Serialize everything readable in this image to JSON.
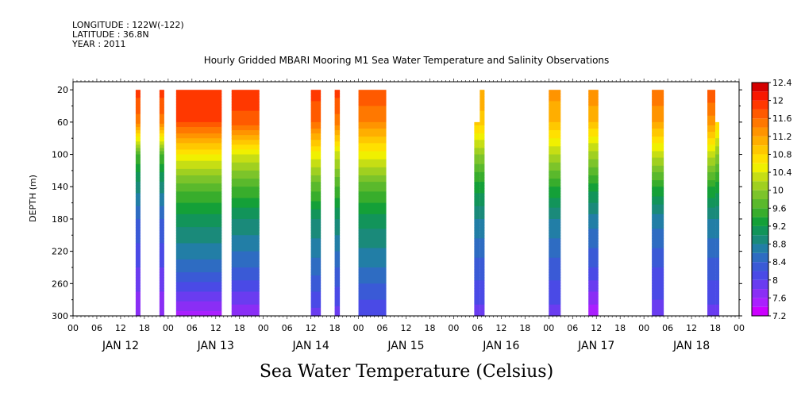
{
  "header": {
    "longitude": "LONGITUDE : 122W(-122)",
    "latitude": "LATITUDE : 36.8N",
    "year": "YEAR : 2011"
  },
  "chart_data": {
    "type": "heatmap",
    "title": "Hourly Gridded MBARI Mooring M1 Sea Water Temperature and Salinity Observations",
    "xlabel": "",
    "ylabel": "DEPTH (m)",
    "colorbar_label": "Sea Water Temperature (Celsius)",
    "x_range_hours": [
      0,
      168
    ],
    "ylim": [
      300,
      10
    ],
    "y_reversed": true,
    "y_ticks": [
      20,
      60,
      100,
      140,
      180,
      220,
      260,
      300
    ],
    "x_hour_ticks": [
      "00",
      "06",
      "12",
      "18",
      "00",
      "06",
      "12",
      "18",
      "00",
      "06",
      "12",
      "18",
      "00",
      "06",
      "12",
      "18",
      "00",
      "06",
      "12",
      "18",
      "00",
      "06",
      "12",
      "18",
      "00",
      "06",
      "12",
      "18",
      "00"
    ],
    "days": [
      "JAN 12",
      "JAN 13",
      "JAN 14",
      "JAN 15",
      "JAN 16",
      "JAN 17",
      "JAN 18"
    ],
    "colorbar": {
      "levels": [
        7.2,
        7.4,
        7.6,
        7.8,
        8.0,
        8.2,
        8.4,
        8.6,
        8.8,
        9.0,
        9.2,
        9.4,
        9.6,
        9.8,
        10.0,
        10.2,
        10.4,
        10.6,
        10.8,
        11.0,
        11.2,
        11.4,
        11.6,
        11.8,
        12.0,
        12.2,
        12.4
      ],
      "labels": [
        "12.4",
        "12",
        "11.6",
        "11.2",
        "10.8",
        "10.4",
        "10",
        "9.6",
        "9.2",
        "8.8",
        "8.4",
        "8",
        "7.6",
        "7.2"
      ],
      "colors": [
        "#cc00ff",
        "#aa20ff",
        "#8a2ef5",
        "#6a3cf0",
        "#4a4ae6",
        "#3a5ad6",
        "#2e6cc2",
        "#227ea6",
        "#1a8a7a",
        "#12945a",
        "#14a038",
        "#38ad2c",
        "#5ab92c",
        "#7cc42a",
        "#a0d020",
        "#c6de14",
        "#f0f000",
        "#ffe000",
        "#ffc800",
        "#ffae00",
        "#ff9400",
        "#ff7800",
        "#ff5a00",
        "#ff3800",
        "#f81800",
        "#d40000",
        "#a00000"
      ]
    },
    "segments": [
      {
        "start_hour": 15.8,
        "end_hour": 17.0,
        "top_depth": 20,
        "profile": [
          11.9,
          11.5,
          9.6,
          8.9,
          8.4,
          8.0,
          7.6
        ]
      },
      {
        "start_hour": 21.8,
        "end_hour": 23.0,
        "top_depth": 20,
        "profile": [
          11.9,
          11.5,
          9.6,
          8.9,
          8.4,
          8.0,
          7.6
        ]
      },
      {
        "start_hour": 26.0,
        "end_hour": 37.5,
        "top_depth": 20,
        "profile": [
          12.0,
          11.8,
          10.6,
          9.7,
          9.1,
          8.5,
          7.5
        ]
      },
      {
        "start_hour": 40.0,
        "end_hour": 47.0,
        "top_depth": 20,
        "profile": [
          12.0,
          11.7,
          10.4,
          9.6,
          9.0,
          8.4,
          7.6
        ]
      },
      {
        "start_hour": 60.0,
        "end_hour": 62.5,
        "top_depth": 20,
        "profile": [
          11.9,
          11.6,
          10.5,
          9.7,
          9.0,
          8.5,
          7.9
        ]
      },
      {
        "start_hour": 66.0,
        "end_hour": 67.3,
        "top_depth": 20,
        "profile": [
          11.9,
          11.5,
          10.3,
          9.6,
          9.0,
          8.4,
          7.9
        ]
      },
      {
        "start_hour": 72.0,
        "end_hour": 79.0,
        "top_depth": 20,
        "profile": [
          11.8,
          11.4,
          10.5,
          9.7,
          9.1,
          8.6,
          8.0
        ]
      },
      {
        "start_hour": 101.2,
        "end_hour": 102.6,
        "top_depth": 60,
        "profile": [
          10.9,
          10.9,
          10.0,
          9.3,
          8.8,
          8.3,
          7.9
        ]
      },
      {
        "start_hour": 102.6,
        "end_hour": 103.8,
        "top_depth": 20,
        "profile": [
          11.2,
          10.9,
          10.0,
          9.3,
          8.8,
          8.3,
          7.9
        ]
      },
      {
        "start_hour": 120.0,
        "end_hour": 123.0,
        "top_depth": 20,
        "profile": [
          11.3,
          11.0,
          10.2,
          9.4,
          8.8,
          8.3,
          7.9
        ]
      },
      {
        "start_hour": 130.0,
        "end_hour": 132.5,
        "top_depth": 20,
        "profile": [
          11.4,
          11.0,
          10.1,
          9.3,
          8.7,
          8.2,
          7.4
        ]
      },
      {
        "start_hour": 146.0,
        "end_hour": 149.0,
        "top_depth": 20,
        "profile": [
          11.6,
          11.2,
          10.3,
          9.4,
          8.7,
          8.2,
          7.9
        ]
      },
      {
        "start_hour": 160.0,
        "end_hour": 162.0,
        "top_depth": 20,
        "profile": [
          11.8,
          11.3,
          10.3,
          9.4,
          8.8,
          8.3,
          7.9
        ]
      },
      {
        "start_hour": 162.0,
        "end_hour": 163.0,
        "top_depth": 60,
        "profile": [
          10.8,
          10.8,
          10.0,
          9.3,
          8.8,
          8.3,
          7.9
        ]
      }
    ]
  }
}
